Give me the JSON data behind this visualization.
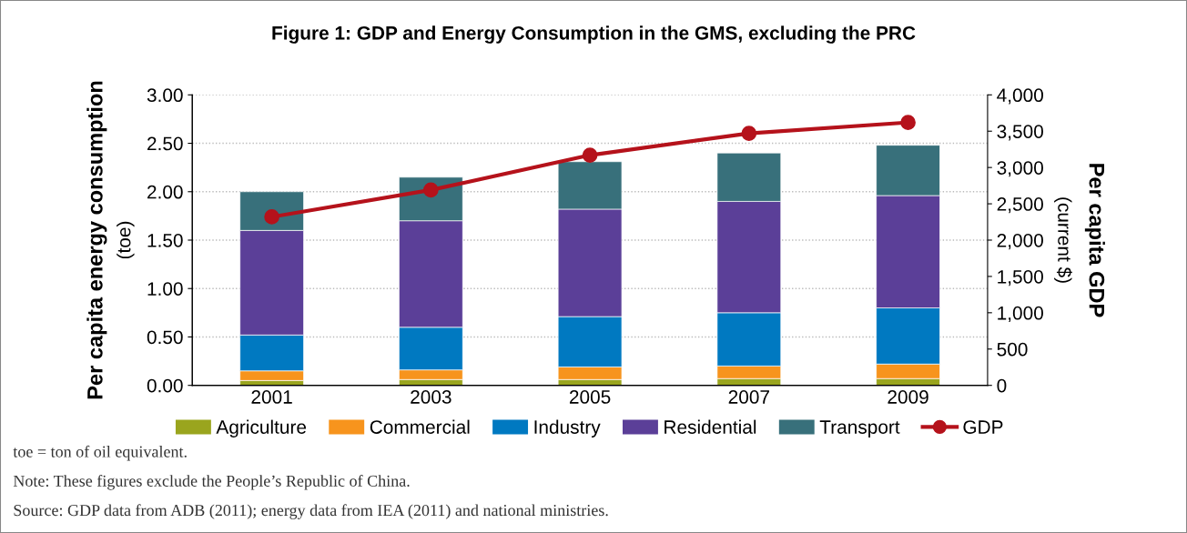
{
  "chart_data": {
    "type": "bar",
    "stacked": true,
    "title": "Figure 1: GDP and Energy Consumption in the GMS, excluding the PRC",
    "ylabel": "Per capita energy consumption\n(toe)",
    "y2label": "Per capita GDP\n(current $)",
    "categories": [
      "2001",
      "2003",
      "2005",
      "2007",
      "2009"
    ],
    "series": [
      {
        "name": "Agriculture",
        "color": "#9aa51e",
        "values": [
          0.05,
          0.06,
          0.06,
          0.07,
          0.07
        ]
      },
      {
        "name": "Commercial",
        "color": "#f7941d",
        "values": [
          0.1,
          0.1,
          0.13,
          0.13,
          0.15
        ]
      },
      {
        "name": "Industry",
        "color": "#0079c1",
        "values": [
          0.37,
          0.44,
          0.52,
          0.55,
          0.58
        ]
      },
      {
        "name": "Residential",
        "color": "#5b3f98",
        "values": [
          1.08,
          1.1,
          1.11,
          1.15,
          1.16
        ]
      },
      {
        "name": "Transport",
        "color": "#38707b",
        "values": [
          0.4,
          0.45,
          0.49,
          0.5,
          0.52
        ]
      },
      {
        "name": "GDP",
        "type": "line",
        "axis": "y2",
        "color": "#b5121b",
        "marker": "circle",
        "line_style": "solid",
        "values": [
          2320,
          2690,
          3170,
          3470,
          3620
        ]
      }
    ],
    "ylim": [
      0,
      3
    ],
    "yticks": [
      {
        "value": 0,
        "label": "0.00"
      },
      {
        "value": 0.5,
        "label": "0.50"
      },
      {
        "value": 1,
        "label": "1.00"
      },
      {
        "value": 1.5,
        "label": "1.50"
      },
      {
        "value": 2,
        "label": "2.00"
      },
      {
        "value": 2.5,
        "label": "2.50"
      },
      {
        "value": 3,
        "label": "3.00"
      }
    ],
    "y2lim": [
      0,
      4000
    ],
    "y2ticks": [
      0,
      500,
      {
        "value": 1000,
        "label": "1,000"
      },
      {
        "value": 1500,
        "label": "1,500"
      },
      {
        "value": 2000,
        "label": "2,000"
      },
      {
        "value": 2500,
        "label": "2,500"
      },
      {
        "value": 3000,
        "label": "3,000"
      },
      {
        "value": 3500,
        "label": "3,500"
      },
      {
        "value": 4000,
        "label": "4,000"
      }
    ],
    "grid": "y",
    "legend": "bottom",
    "annotations": [
      "toe = ton of oil equivalent.",
      "Note: These figures exclude the People’s Republic of China.",
      "Source: GDP data from ADB (2011); energy data from IEA (2011) and national ministries."
    ]
  }
}
